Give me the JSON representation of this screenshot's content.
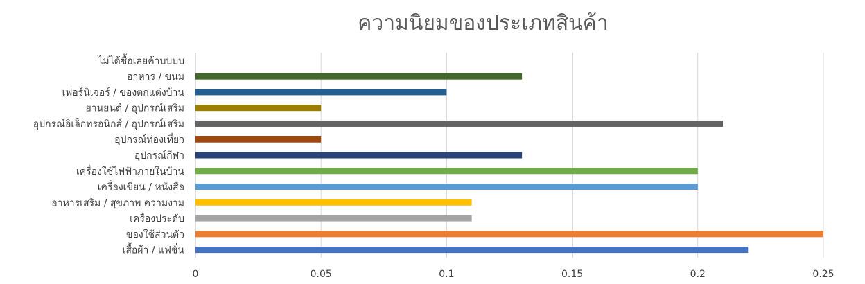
{
  "chart_data": {
    "type": "bar",
    "orientation": "horizontal",
    "title": "ความนิยมของประเภทสินค้า",
    "xlabel": "",
    "ylabel": "",
    "xlim": [
      0,
      0.25
    ],
    "x_ticks": [
      "0",
      "0.05",
      "0.1",
      "0.15",
      "0.2",
      "0.25"
    ],
    "grid": true,
    "legend": "none",
    "categories": [
      "ไม่ได้ซื้อเลยค้าบบบบ",
      "อาหาร / ขนม",
      "เฟอร์นิเจอร์ / ของตกแต่งบ้าน",
      "ยานยนต์ / อุปกรณ์เสริม",
      "อุปกรณ์อิเล็กทรอนิกส์ / อุปกรณ์เสริม",
      "อุปกรณ์ท่องเที่ยว",
      "อุปกรณ์กีฬา",
      "เครื่องใช้ไฟฟ้าภายในบ้าน",
      "เครื่องเขียน / หนังสือ",
      "อาหารเสริม / สุขภาพ ความงาม",
      "เครื่องประดับ",
      "ของใช้ส่วนตัว",
      "เสื้อผ้า / แฟชั่น"
    ],
    "values": [
      0,
      0.13,
      0.1,
      0.05,
      0.21,
      0.05,
      0.13,
      0.2,
      0.2,
      0.11,
      0.11,
      0.25,
      0.22
    ],
    "colors": [
      "#A5A5A5",
      "#43682B",
      "#255E91",
      "#9E7E00",
      "#636363",
      "#9E480E",
      "#264478",
      "#70AD47",
      "#5B9BD5",
      "#FFC000",
      "#A5A5A5",
      "#ED7D31",
      "#4472C4"
    ]
  }
}
